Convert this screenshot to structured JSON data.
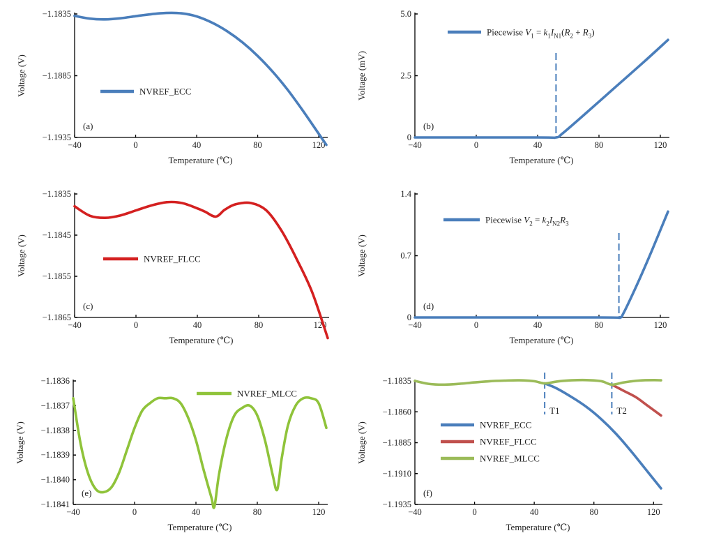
{
  "chart_data": [
    {
      "id": "a",
      "type": "line",
      "panel_label": "(a)",
      "xlabel": "Temperature (℃)",
      "ylabel": "Voltage (V)",
      "xlim": [
        -40,
        125
      ],
      "ylim": [
        -1.1935,
        -1.1835
      ],
      "xticks": [
        -40,
        0,
        40,
        80,
        120
      ],
      "xtick_labels": [
        "−40",
        "0",
        "40",
        "80",
        "120"
      ],
      "yticks": [
        -1.1835,
        -1.1885,
        -1.1935
      ],
      "ytick_labels": [
        "−1.1835",
        "−1.1885",
        "−1.1935"
      ],
      "legend": "left",
      "series": [
        {
          "name": "NVREF_ECC",
          "color": "#4a7ebb",
          "x": [
            -40,
            -30,
            -20,
            -10,
            0,
            10,
            20,
            30,
            40,
            50,
            60,
            70,
            80,
            90,
            100,
            110,
            120,
            125
          ],
          "y": [
            -1.18365,
            -1.18388,
            -1.18394,
            -1.18385,
            -1.18368,
            -1.18352,
            -1.18342,
            -1.18345,
            -1.1837,
            -1.1842,
            -1.1849,
            -1.1858,
            -1.1869,
            -1.1882,
            -1.1897,
            -1.1914,
            -1.1932,
            -1.1941
          ]
        }
      ]
    },
    {
      "id": "b",
      "type": "line",
      "panel_label": "(b)",
      "xlabel": "Temperature (℃)",
      "ylabel": "Voltage (mV)",
      "xlim": [
        -40,
        125
      ],
      "ylim": [
        0,
        5.0
      ],
      "xticks": [
        -40,
        0,
        40,
        80,
        120
      ],
      "xtick_labels": [
        "−40",
        "0",
        "40",
        "80",
        "120"
      ],
      "yticks": [
        0,
        2.5,
        5.0
      ],
      "ytick_labels": [
        "0",
        "2.5",
        "5.0"
      ],
      "legend": "top",
      "threshold_x": 52,
      "series": [
        {
          "name": "Piecewise V1 = k1IN1(R2 + R3)",
          "color": "#4a7ebb",
          "x": [
            -40,
            40,
            52,
            56,
            70,
            90,
            110,
            125
          ],
          "y": [
            0,
            0,
            0,
            0.15,
            0.9,
            2.0,
            3.1,
            3.95
          ]
        }
      ]
    },
    {
      "id": "c",
      "type": "line",
      "panel_label": "(c)",
      "xlabel": "Temperature (℃)",
      "ylabel": "Voltage (V)",
      "xlim": [
        -40,
        125
      ],
      "ylim": [
        -1.1865,
        -1.1835
      ],
      "xticks": [
        -40,
        0,
        40,
        80,
        120
      ],
      "xtick_labels": [
        "−40",
        "0",
        "40",
        "80",
        "120"
      ],
      "yticks": [
        -1.1835,
        -1.1845,
        -1.1855,
        -1.1865
      ],
      "ytick_labels": [
        "−1.1835",
        "−1.1845",
        "−1.1855",
        "−1.1865"
      ],
      "legend": "left",
      "series": [
        {
          "name": "NVREF_FLCC",
          "color": "#d42020",
          "x": [
            -40,
            -30,
            -20,
            -10,
            0,
            10,
            20,
            30,
            40,
            45,
            52,
            58,
            65,
            75,
            85,
            95,
            105,
            115,
            125
          ],
          "y": [
            -1.1838,
            -1.18403,
            -1.18408,
            -1.18402,
            -1.1839,
            -1.18378,
            -1.1837,
            -1.18372,
            -1.18385,
            -1.18393,
            -1.18405,
            -1.18388,
            -1.18375,
            -1.18372,
            -1.1839,
            -1.1844,
            -1.1851,
            -1.1859,
            -1.187
          ]
        }
      ]
    },
    {
      "id": "d",
      "type": "line",
      "panel_label": "(d)",
      "xlabel": "Temperature (℃)",
      "ylabel": "Voltage (V)",
      "xlim": [
        -40,
        125
      ],
      "ylim": [
        0,
        1.4
      ],
      "xticks": [
        -40,
        0,
        40,
        80,
        120
      ],
      "xtick_labels": [
        "−40",
        "0",
        "40",
        "80",
        "120"
      ],
      "yticks": [
        0,
        0.7,
        1.4
      ],
      "ytick_labels": [
        "0",
        "0.7",
        "1.4"
      ],
      "legend": "top",
      "threshold_x": 93,
      "series": [
        {
          "name": "Piecewise V2 = k2IN2R3",
          "color": "#4a7ebb",
          "x": [
            -40,
            80,
            93,
            96,
            105,
            115,
            125
          ],
          "y": [
            0,
            0,
            0,
            0.05,
            0.38,
            0.78,
            1.2
          ]
        }
      ]
    },
    {
      "id": "e",
      "type": "line",
      "panel_label": "(e)",
      "xlabel": "Temperature (℃)",
      "ylabel": "Voltage (V)",
      "xlim": [
        -40,
        125
      ],
      "ylim": [
        -1.1841,
        -1.1836
      ],
      "xticks": [
        -40,
        0,
        40,
        80,
        120
      ],
      "xtick_labels": [
        "−40",
        "0",
        "40",
        "80",
        "120"
      ],
      "yticks": [
        -1.1836,
        -1.1837,
        -1.1838,
        -1.1839,
        -1.184,
        -1.1841
      ],
      "ytick_labels": [
        "−1.1836",
        "−1.1837",
        "−1.1838",
        "−1.1839",
        "−1.1840",
        "−1.1841"
      ],
      "legend": "top-right",
      "series": [
        {
          "name": "NVREF_MLCC",
          "color": "#8fc33a",
          "x": [
            -40,
            -35,
            -30,
            -25,
            -20,
            -15,
            -10,
            -5,
            0,
            5,
            10,
            15,
            20,
            25,
            30,
            35,
            40,
            45,
            50,
            52,
            55,
            60,
            65,
            70,
            75,
            80,
            85,
            90,
            93,
            96,
            100,
            105,
            110,
            115,
            120,
            125
          ],
          "y": [
            -1.18367,
            -1.18386,
            -1.18398,
            -1.18404,
            -1.18405,
            -1.18403,
            -1.18397,
            -1.18388,
            -1.18379,
            -1.18372,
            -1.18369,
            -1.18367,
            -1.18367,
            -1.18367,
            -1.18369,
            -1.18375,
            -1.18384,
            -1.18396,
            -1.18407,
            -1.18411,
            -1.18398,
            -1.18383,
            -1.18374,
            -1.18371,
            -1.1837,
            -1.18374,
            -1.18384,
            -1.18398,
            -1.18404,
            -1.18391,
            -1.18378,
            -1.1837,
            -1.18367,
            -1.18367,
            -1.18369,
            -1.18379
          ]
        }
      ]
    },
    {
      "id": "f",
      "type": "line",
      "panel_label": "(f)",
      "xlabel": "Temperature (℃)",
      "ylabel": "Voltage (V)",
      "xlim": [
        -40,
        125
      ],
      "ylim": [
        -1.1935,
        -1.1835
      ],
      "xticks": [
        -40,
        0,
        40,
        80,
        120
      ],
      "xtick_labels": [
        "−40",
        "0",
        "40",
        "80",
        "120"
      ],
      "yticks": [
        -1.1835,
        -1.186,
        -1.1885,
        -1.191,
        -1.1935
      ],
      "ytick_labels": [
        "−1.1835",
        "−1.1860",
        "−1.1885",
        "−1.1910",
        "−1.1935"
      ],
      "legend": "left",
      "annotations": [
        {
          "text": "T1",
          "x": 47
        },
        {
          "text": "T2",
          "x": 92
        }
      ],
      "series": [
        {
          "name": "NVREF_ECC",
          "color": "#4a7ebb",
          "x": [
            47,
            55,
            65,
            75,
            85,
            95,
            105,
            115,
            125
          ],
          "y": [
            -1.1837,
            -1.1841,
            -1.1848,
            -1.1856,
            -1.1866,
            -1.1878,
            -1.1892,
            -1.1907,
            -1.1922
          ]
        },
        {
          "name": "NVREF_FLCC",
          "color": "#c0504d",
          "x": [
            92,
            100,
            108,
            116,
            125
          ],
          "y": [
            -1.1838,
            -1.1843,
            -1.1848,
            -1.1855,
            -1.1863
          ]
        },
        {
          "name": "NVREF_MLCC",
          "color": "#9bbb59",
          "x": [
            -40,
            -30,
            -20,
            -10,
            0,
            10,
            20,
            30,
            40,
            47,
            55,
            65,
            75,
            85,
            92,
            100,
            110,
            120,
            125
          ],
          "y": [
            -1.1835,
            -1.18375,
            -1.1838,
            -1.18373,
            -1.18362,
            -1.18352,
            -1.18347,
            -1.18345,
            -1.18352,
            -1.1837,
            -1.18355,
            -1.18345,
            -1.18343,
            -1.18352,
            -1.1838,
            -1.18362,
            -1.18347,
            -1.18343,
            -1.18345
          ]
        }
      ]
    }
  ]
}
